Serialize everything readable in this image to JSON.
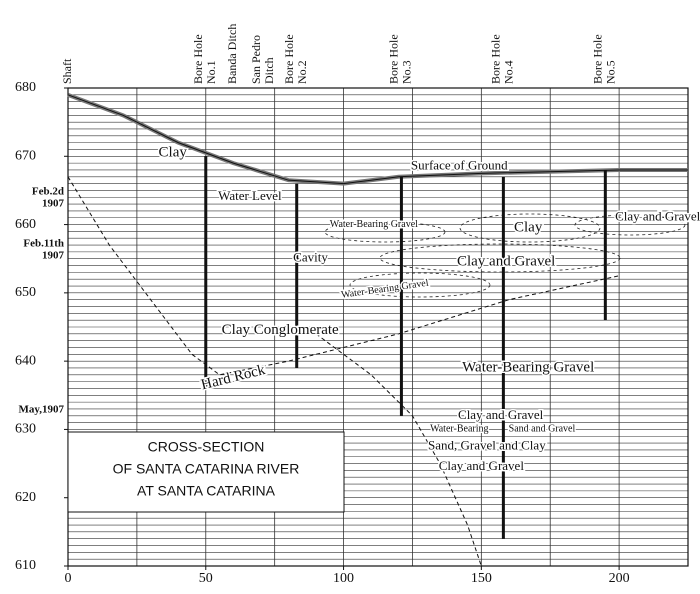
{
  "chart_data": {
    "type": "section",
    "title": [
      "CROSS-SECTION",
      "OF SANTA CATARINA RIVER",
      "AT SANTA CATARINA"
    ],
    "xlim": [
      0,
      225
    ],
    "ylim": [
      610,
      680
    ],
    "xticks": [
      0,
      50,
      100,
      150,
      200
    ],
    "yticks": [
      610,
      620,
      630,
      640,
      650,
      660,
      670,
      680
    ],
    "grid": true,
    "xgrid_step": 25,
    "ygrid_step": 1,
    "top_labels": [
      {
        "lines": [
          "Shaft"
        ],
        "x": 0
      },
      {
        "lines": [
          "Bore Hole",
          "No.1"
        ],
        "x": 50
      },
      {
        "lines": [
          "Banda Ditch"
        ],
        "x": 60
      },
      {
        "lines": [
          "San Pedro",
          "Ditch"
        ],
        "x": 71
      },
      {
        "lines": [
          "Bore Hole",
          "No.2"
        ],
        "x": 83
      },
      {
        "lines": [
          "Bore Hole",
          "No.3"
        ],
        "x": 121
      },
      {
        "lines": [
          "Bore Hole",
          "No.4"
        ],
        "x": 158
      },
      {
        "lines": [
          "Bore Hole",
          "No.5"
        ],
        "x": 195
      }
    ],
    "bore_holes": [
      {
        "x": 50,
        "top": 670,
        "bottom": 636
      },
      {
        "x": 83,
        "top": 666,
        "bottom": 639
      },
      {
        "x": 121,
        "top": 667,
        "bottom": 632
      },
      {
        "x": 158,
        "top": 667,
        "bottom": 614
      },
      {
        "x": 195,
        "top": 668,
        "bottom": 646
      }
    ],
    "surface": {
      "x": [
        0,
        20,
        40,
        60,
        80,
        100,
        120,
        150,
        200,
        225
      ],
      "y": [
        679,
        676,
        672,
        669,
        666.5,
        666,
        667,
        667.5,
        668,
        668
      ]
    },
    "strata_lines": [
      {
        "x": [
          0,
          15,
          30,
          45,
          55,
          80,
          120,
          160,
          200
        ],
        "y": [
          667,
          657,
          649,
          641,
          638,
          640,
          644,
          649,
          652.5
        ]
      },
      {
        "x": [
          90,
          110,
          125,
          135,
          145,
          150
        ],
        "y": [
          644,
          638,
          632,
          625,
          616,
          610
        ]
      }
    ],
    "labels": [
      "Clay",
      "Surface of Ground",
      "Water Level",
      "Cavity",
      "Water-Bearing Gravel",
      "Clay",
      "Clay and Gravel",
      "Clay and Gravel",
      "Water-Bearing Gravel",
      "Clay Conglomerate",
      "Hard Rock",
      "Water-Bearing Gravel",
      "Clay and Gravel",
      "Water-Bearing",
      "Sand and Gravel",
      "Sand, Gravel and Clay",
      "Clay and Gravel"
    ],
    "dates": [
      [
        "Feb.2d",
        "1907"
      ],
      [
        "Feb.11th",
        "1907"
      ],
      [
        "May,1907"
      ]
    ]
  }
}
